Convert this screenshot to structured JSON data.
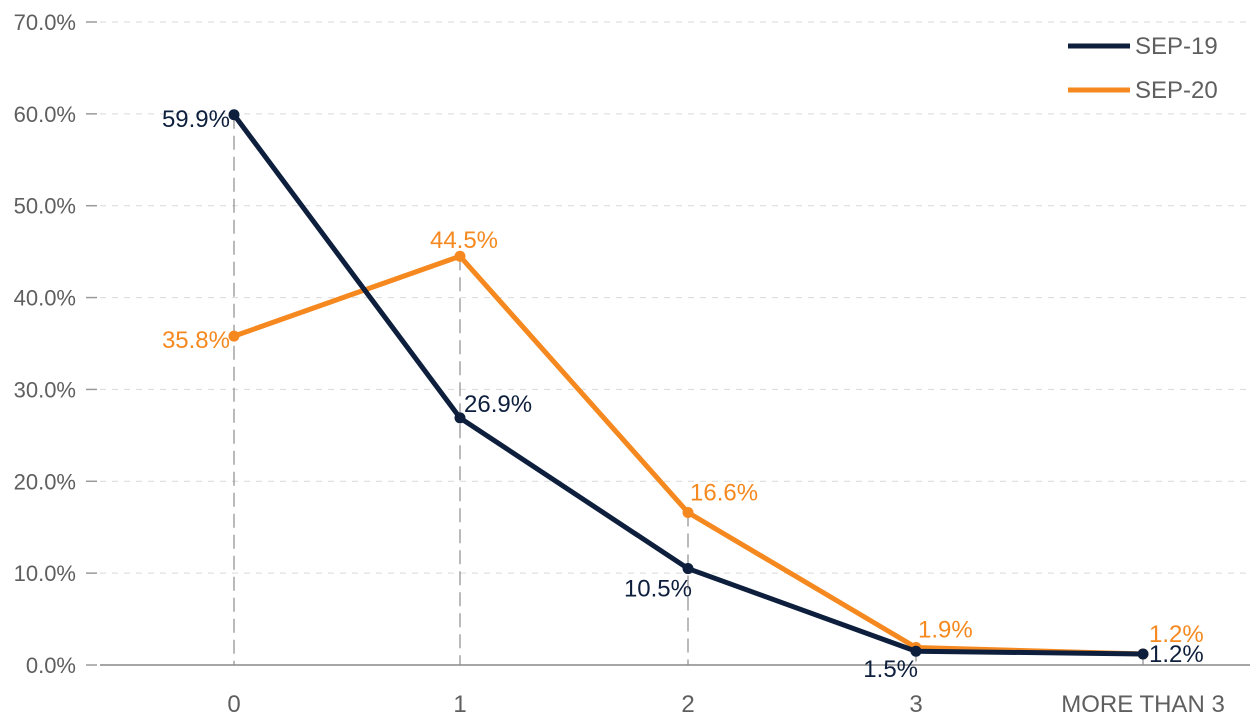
{
  "chart_data": {
    "type": "line",
    "categories": [
      "0",
      "1",
      "2",
      "3",
      "MORE THAN 3"
    ],
    "y_ticks": [
      "0.0%",
      "10.0%",
      "20.0%",
      "30.0%",
      "40.0%",
      "50.0%",
      "60.0%",
      "70.0%"
    ],
    "ylim": [
      0,
      70
    ],
    "grid": true,
    "legend_position": "top-right",
    "series": [
      {
        "name": "SEP-19",
        "color": "#0d1f3c",
        "values": [
          59.9,
          26.9,
          10.5,
          1.5,
          1.2
        ],
        "labels": [
          "59.9%",
          "26.9%",
          "10.5%",
          "1.5%",
          "1.2%"
        ]
      },
      {
        "name": "SEP-20",
        "color": "#f5891f",
        "values": [
          35.8,
          44.5,
          16.6,
          1.9,
          1.2
        ],
        "labels": [
          "35.8%",
          "44.5%",
          "16.6%",
          "1.9%",
          "1.2%"
        ]
      }
    ]
  }
}
